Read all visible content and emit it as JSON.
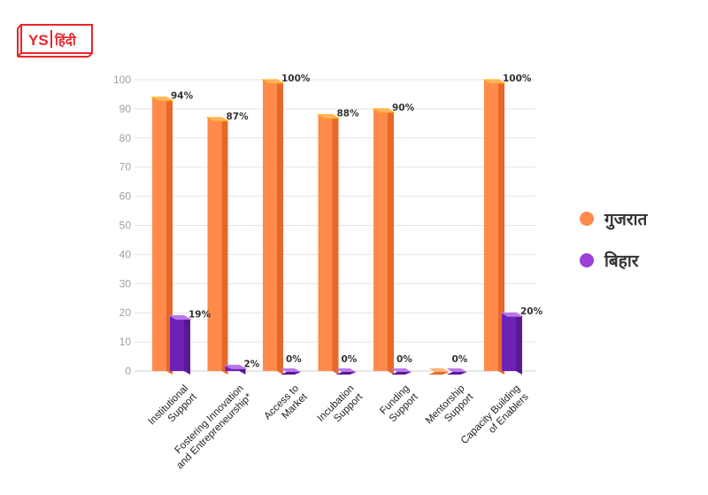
{
  "brand": {
    "text_latin": "YS",
    "text_hindi": "हिंदी",
    "color": "#e8262b"
  },
  "chart_data": {
    "type": "bar",
    "categories": [
      [
        "Institutional",
        "Support"
      ],
      [
        "Fostering Innovation",
        "and Entrepreneurship*"
      ],
      [
        "Access to",
        "Market"
      ],
      [
        "Incubation",
        "Support"
      ],
      [
        "Funding",
        "Support"
      ],
      [
        "Mentorship",
        "Support"
      ],
      [
        "Capacity Building",
        "of Enablers"
      ]
    ],
    "series": [
      {
        "name": "गुजरात",
        "color": "#ff8a4c",
        "values": [
          94,
          87,
          100,
          88,
          90,
          0,
          100
        ],
        "labels": [
          "94%",
          "87%",
          "100%",
          "88%",
          "90%",
          "",
          "100%"
        ]
      },
      {
        "name": "बिहार",
        "color": "#9b3fd6",
        "values": [
          19,
          2,
          0,
          0,
          0,
          0,
          20
        ],
        "labels": [
          "19%",
          "2%",
          "0%",
          "0%",
          "0%",
          "0%",
          "20%"
        ]
      }
    ],
    "ylim": [
      0,
      100
    ],
    "yticks": [
      "0",
      "10",
      "20",
      "30",
      "40",
      "50",
      "60",
      "70",
      "80",
      "90",
      "100"
    ],
    "grid": true,
    "legend_position": "right"
  }
}
